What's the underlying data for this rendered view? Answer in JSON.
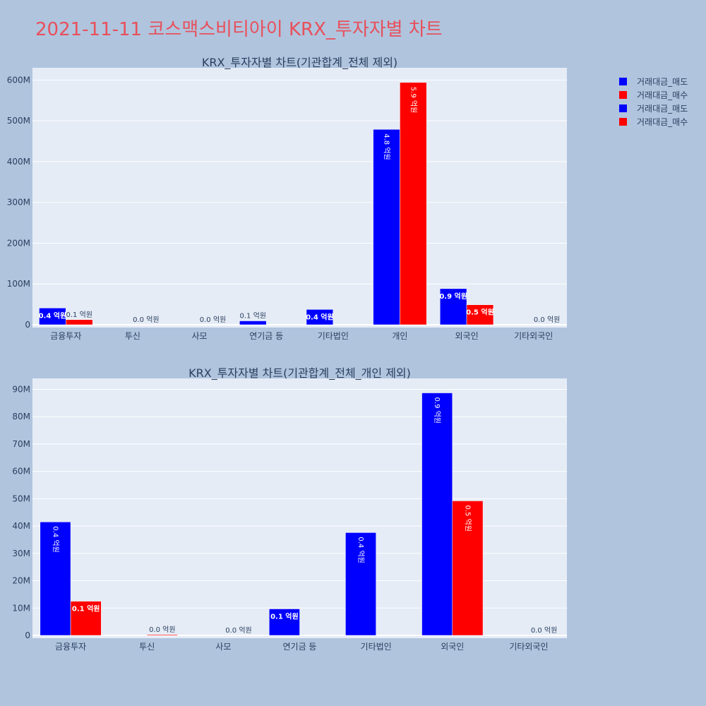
{
  "title": "2021-11-11 코스맥스비티아이 KRX_투자자별 차트",
  "colors": {
    "background": "#b0c4de",
    "plot_bg": "#e5ecf6",
    "title": "#e8505b",
    "text": "#2a3f5f",
    "sell": "#0000ff",
    "buy": "#ff0000"
  },
  "legend": {
    "entries": [
      {
        "label": "거래대금_매도",
        "color": "#0000ff"
      },
      {
        "label": "거래대금_매수",
        "color": "#ff0000"
      },
      {
        "label": "거래대금_매도",
        "color": "#0000ff"
      },
      {
        "label": "거래대금_매수",
        "color": "#ff0000"
      }
    ],
    "placement": "top-right"
  },
  "chart_data": [
    {
      "type": "bar",
      "title": "KRX_투자자별 차트(기관합계_전체 제외)",
      "categories": [
        "금융투자",
        "투신",
        "사모",
        "연기금 등",
        "기타법인",
        "개인",
        "외국인",
        "기타외국인"
      ],
      "series": [
        {
          "name": "거래대금_매도",
          "values": [
            41000000,
            0,
            0,
            9500000,
            37500000,
            479000000,
            88500000,
            0
          ],
          "labels": [
            "0.4 억원",
            "",
            "",
            "0.1 억원",
            "0.4 억원",
            "4.8 억원",
            "0.9 억원",
            ""
          ]
        },
        {
          "name": "거래대금_매수",
          "values": [
            12500000,
            200000,
            0,
            0,
            0,
            594000000,
            49000000,
            0
          ],
          "labels": [
            "0.1 억원",
            "0.0 억원",
            "0.0 억원",
            "",
            "",
            "5.9 억원",
            "0.5 억원",
            "0.0 억원"
          ]
        }
      ],
      "ylim": [
        0,
        630000000
      ],
      "yticks": [
        0,
        100000000,
        200000000,
        300000000,
        400000000,
        500000000,
        600000000
      ],
      "ytick_labels": [
        "0",
        "100M",
        "200M",
        "300M",
        "400M",
        "500M",
        "600M"
      ],
      "grid": true
    },
    {
      "type": "bar",
      "title": "KRX_투자자별 차트(기관합계_전체_개인 제외)",
      "categories": [
        "금융투자",
        "투신",
        "사모",
        "연기금 등",
        "기타법인",
        "외국인",
        "기타외국인"
      ],
      "series": [
        {
          "name": "거래대금_매도",
          "values": [
            41500000,
            0,
            0,
            9700000,
            37600000,
            88700000,
            0
          ],
          "labels": [
            "0.4 억원",
            "",
            "",
            "0.1 억원",
            "0.4 억원",
            "0.9 억원",
            ""
          ]
        },
        {
          "name": "거래대금_매수",
          "values": [
            12500000,
            300000,
            0,
            0,
            0,
            49200000,
            0
          ],
          "labels": [
            "0.1 억원",
            "0.0 억원",
            "0.0 억원",
            "",
            "",
            "0.5 억원",
            "0.0 억원"
          ]
        }
      ],
      "ylim": [
        0,
        94000000
      ],
      "yticks": [
        0,
        10000000,
        20000000,
        30000000,
        40000000,
        50000000,
        60000000,
        70000000,
        80000000,
        90000000
      ],
      "ytick_labels": [
        "0",
        "10M",
        "20M",
        "30M",
        "40M",
        "50M",
        "60M",
        "70M",
        "80M",
        "90M"
      ],
      "grid": true
    }
  ]
}
